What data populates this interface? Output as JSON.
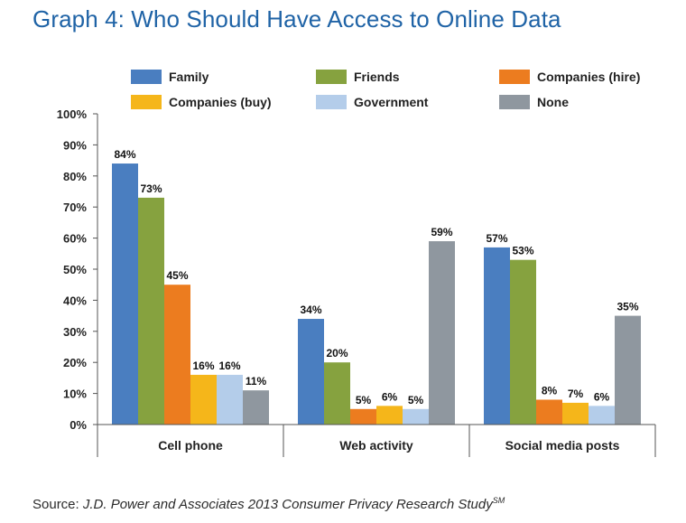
{
  "title": "Graph 4: Who Should Have Access to Online Data",
  "source": {
    "prefix": "Source: ",
    "text": "J.D. Power and Associates 2013 Consumer Privacy Research Study",
    "mark": "SM"
  },
  "colors": {
    "Family": "#4a7ec0",
    "Friends": "#86a23f",
    "Companies (hire)": "#ec7c1f",
    "Companies (buy)": "#f5b61a",
    "Government": "#b4cdea",
    "None": "#8f979f"
  },
  "chart_data": {
    "type": "bar",
    "categories": [
      "Cell phone",
      "Web activity",
      "Social media posts"
    ],
    "series": [
      {
        "name": "Family",
        "values": [
          84,
          34,
          57
        ]
      },
      {
        "name": "Friends",
        "values": [
          73,
          20,
          53
        ]
      },
      {
        "name": "Companies (hire)",
        "values": [
          45,
          5,
          8
        ]
      },
      {
        "name": "Companies (buy)",
        "values": [
          16,
          6,
          7
        ]
      },
      {
        "name": "Government",
        "values": [
          16,
          5,
          6
        ]
      },
      {
        "name": "None",
        "values": [
          11,
          59,
          35
        ]
      }
    ],
    "value_suffix": "%",
    "yticks": [
      "0%",
      "10%",
      "20%",
      "30%",
      "40%",
      "50%",
      "60%",
      "70%",
      "80%",
      "90%",
      "100%"
    ],
    "ylim": [
      0,
      100
    ],
    "grid": false,
    "legend": "top"
  }
}
